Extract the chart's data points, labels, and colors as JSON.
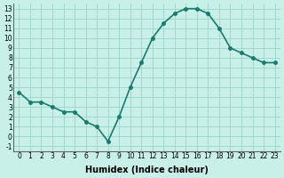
{
  "x": [
    0,
    1,
    2,
    3,
    4,
    5,
    6,
    7,
    8,
    9,
    10,
    11,
    12,
    13,
    14,
    15,
    16,
    17,
    18,
    19,
    20,
    21,
    22,
    23
  ],
  "y": [
    4.5,
    3.5,
    3.5,
    3.0,
    2.5,
    2.5,
    1.5,
    1.0,
    -0.5,
    2.0,
    5.0,
    7.5,
    10.0,
    11.5,
    12.5,
    13.0,
    13.0,
    12.5,
    11.0,
    9.0,
    8.5,
    8.0,
    7.5,
    7.5
  ],
  "line_color": "#1a7a6e",
  "bg_color": "#c8f0e8",
  "grid_color": "#a0d8cc",
  "xlabel": "Humidex (Indice chaleur)",
  "xlim": [
    -0.5,
    23.5
  ],
  "ylim": [
    -1.5,
    13.5
  ],
  "yticks": [
    -1,
    0,
    1,
    2,
    3,
    4,
    5,
    6,
    7,
    8,
    9,
    10,
    11,
    12,
    13
  ],
  "xticks": [
    0,
    1,
    2,
    3,
    4,
    5,
    6,
    7,
    8,
    9,
    10,
    11,
    12,
    13,
    14,
    15,
    16,
    17,
    18,
    19,
    20,
    21,
    22,
    23
  ]
}
